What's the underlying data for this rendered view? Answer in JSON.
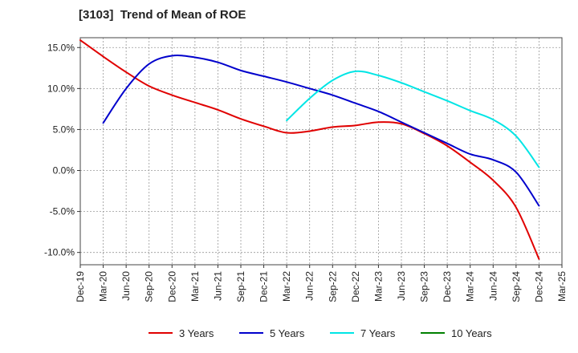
{
  "chart_data": {
    "type": "line",
    "title": "[3103]  Trend of Mean of ROE",
    "xlabel": "",
    "ylabel": "",
    "x": [
      "Dec-19",
      "Mar-20",
      "Jun-20",
      "Sep-20",
      "Dec-20",
      "Mar-21",
      "Jun-21",
      "Sep-21",
      "Dec-21",
      "Mar-22",
      "Jun-22",
      "Sep-22",
      "Dec-22",
      "Mar-23",
      "Jun-23",
      "Sep-23",
      "Dec-23",
      "Mar-24",
      "Jun-24",
      "Sep-24",
      "Dec-24",
      "Mar-25"
    ],
    "x_tick_labels": [
      "Dec-19",
      "Mar-20",
      "Jun-20",
      "Sep-20",
      "Dec-20",
      "Mar-21",
      "Jun-21",
      "Sep-21",
      "Dec-21",
      "Mar-22",
      "Jun-22",
      "Sep-22",
      "Dec-22",
      "Mar-23",
      "Jun-23",
      "Sep-23",
      "Dec-23",
      "Mar-24",
      "Jun-24",
      "Sep-24",
      "Dec-24",
      "Mar-25"
    ],
    "y_ticks": [
      15.0,
      10.0,
      5.0,
      0.0,
      -5.0,
      -10.0
    ],
    "y_tick_labels": [
      "15.0%",
      "10.0%",
      "5.0%",
      "0.0%",
      "-5.0%",
      "-10.0%"
    ],
    "ylim": [
      -11.5,
      16.2
    ],
    "grid": true,
    "legend_position": "bottom",
    "series": [
      {
        "name": "3 Years",
        "color": "#e00000",
        "values": [
          15.9,
          13.9,
          12.0,
          10.3,
          9.2,
          8.3,
          7.4,
          6.3,
          5.4,
          4.6,
          4.8,
          5.3,
          5.5,
          5.9,
          5.7,
          4.5,
          3.0,
          1.0,
          -1.2,
          -4.5,
          -10.8,
          null
        ]
      },
      {
        "name": "5 Years",
        "color": "#0000cc",
        "values": [
          null,
          5.8,
          10.0,
          13.0,
          14.0,
          13.8,
          13.2,
          12.2,
          11.5,
          10.8,
          10.0,
          9.2,
          8.2,
          7.2,
          5.9,
          4.6,
          3.3,
          2.0,
          1.3,
          -0.2,
          -4.3,
          null
        ]
      },
      {
        "name": "7 Years",
        "color": "#00e5e5",
        "values": [
          null,
          null,
          null,
          null,
          null,
          null,
          null,
          null,
          null,
          6.1,
          8.8,
          11.0,
          12.1,
          11.6,
          10.7,
          9.6,
          8.5,
          7.3,
          6.2,
          4.2,
          0.4,
          null
        ]
      },
      {
        "name": "10 Years",
        "color": "#008000",
        "values": [
          null,
          null,
          null,
          null,
          null,
          null,
          null,
          null,
          null,
          null,
          null,
          null,
          null,
          null,
          null,
          null,
          null,
          null,
          null,
          null,
          null,
          null
        ]
      }
    ]
  }
}
